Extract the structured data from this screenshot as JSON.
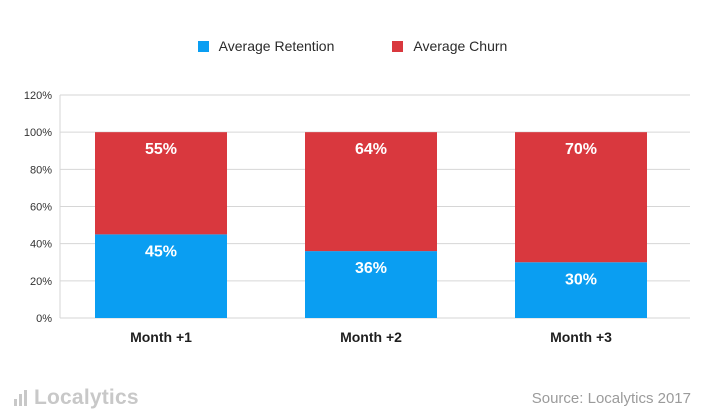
{
  "legend": {
    "retention_label": "Average Retention",
    "churn_label": "Average Churn"
  },
  "colors": {
    "retention": "#0a9ef2",
    "churn": "#d9383e",
    "grid": "#d6d6d6",
    "axis_text": "#333333",
    "bar_label": "#ffffff"
  },
  "footer": {
    "brand": "Localytics",
    "source": "Source: Localytics 2017"
  },
  "chart_data": {
    "type": "bar",
    "stacked": true,
    "categories": [
      "Month +1",
      "Month +2",
      "Month +3"
    ],
    "series": [
      {
        "name": "Average Retention",
        "values": [
          45,
          36,
          30
        ],
        "labels": [
          "45%",
          "36%",
          "30%"
        ]
      },
      {
        "name": "Average Churn",
        "values": [
          55,
          64,
          70
        ],
        "labels": [
          "55%",
          "64%",
          "70%"
        ]
      }
    ],
    "ylim": [
      0,
      120
    ],
    "yticks": [
      0,
      20,
      40,
      60,
      80,
      100,
      120
    ],
    "ytick_labels": [
      "0%",
      "20%",
      "40%",
      "60%",
      "80%",
      "100%",
      "120%"
    ],
    "grid": true,
    "legend_position": "top-center"
  }
}
